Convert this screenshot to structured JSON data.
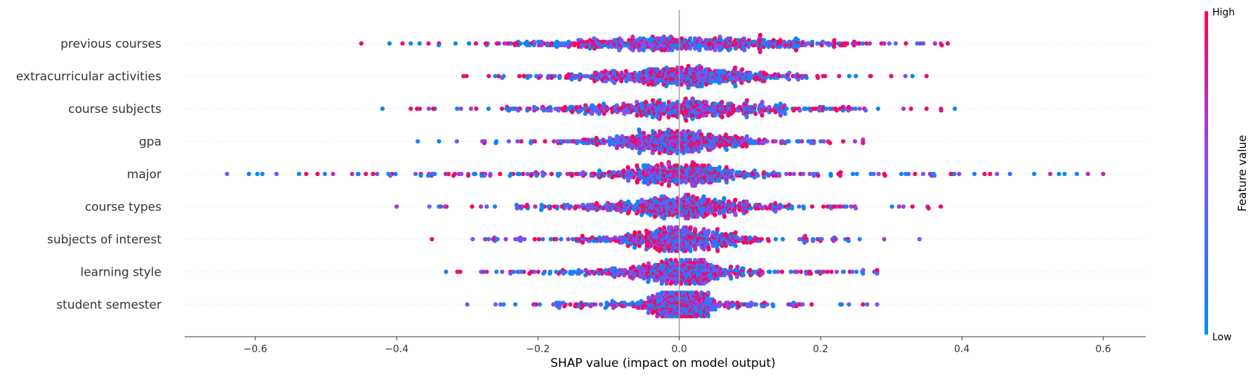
{
  "chart_data": {
    "type": "scatter",
    "subtype": "shap-beeswarm",
    "xlabel": "SHAP value (impact on model output)",
    "xlim": [
      -0.7,
      0.66
    ],
    "xticks": [
      -0.6,
      -0.4,
      -0.2,
      0.0,
      0.2,
      0.4,
      0.6
    ],
    "xtick_labels": [
      "−0.6",
      "−0.4",
      "−0.2",
      "0.0",
      "0.2",
      "0.4",
      "0.6"
    ],
    "zero_line": true,
    "features": [
      {
        "name": "previous courses",
        "min": -0.45,
        "max": 0.38,
        "core_spread": 0.25,
        "notable": [
          -0.45,
          -0.41,
          -0.38,
          0.29,
          0.37,
          0.38
        ]
      },
      {
        "name": "extracurricular activities",
        "min": -0.33,
        "max": 0.35,
        "core_spread": 0.16,
        "notable": [
          0.3,
          0.32,
          0.33,
          0.35
        ]
      },
      {
        "name": "course subjects",
        "min": -0.42,
        "max": 0.39,
        "core_spread": 0.18,
        "notable": [
          -0.42,
          -0.38,
          0.35,
          0.39
        ]
      },
      {
        "name": "gpa",
        "min": -0.37,
        "max": 0.26,
        "core_spread": 0.12,
        "notable": [
          -0.37,
          -0.34
        ]
      },
      {
        "name": "major",
        "min": -0.64,
        "max": 0.6,
        "core_spread": 0.12,
        "notable": [
          -0.64,
          -0.59,
          -0.57,
          -0.49,
          0.29,
          0.36,
          0.44,
          0.6
        ]
      },
      {
        "name": "course types",
        "min": -0.4,
        "max": 0.37,
        "core_spread": 0.12,
        "notable": [
          -0.4,
          -0.34,
          0.33,
          0.37
        ]
      },
      {
        "name": "subjects of interest",
        "min": -0.35,
        "max": 0.34,
        "core_spread": 0.1,
        "notable": [
          -0.35,
          0.29,
          0.34
        ]
      },
      {
        "name": "learning style",
        "min": -0.33,
        "max": 0.28,
        "core_spread": 0.09,
        "notable": [
          -0.33,
          -0.31,
          0.26,
          0.28
        ]
      },
      {
        "name": "student semester",
        "min": -0.3,
        "max": 0.28,
        "core_spread": 0.06,
        "notable": [
          -0.3,
          -0.26,
          0.26,
          0.28
        ]
      }
    ],
    "colorbar": {
      "title": "Feature value",
      "high_label": "High",
      "low_label": "Low",
      "high_color": "#ff0052",
      "mid_color": "#7c52ff",
      "low_color": "#008bfb"
    },
    "grid": false,
    "legend": "none"
  }
}
